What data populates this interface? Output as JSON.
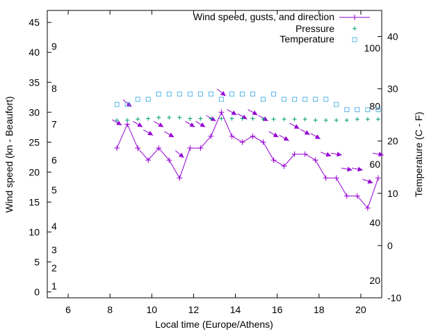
{
  "chart_data": {
    "type": "line",
    "title": "",
    "xlabel": "Local time (Europe/Athens)",
    "ylabel": "Wind speed (kn - Beaufort)",
    "y2label": "Temperature (C - F)",
    "xlim": [
      5,
      21
    ],
    "ylim": [
      -1,
      47
    ],
    "y2lim": [
      -10,
      45
    ],
    "x_ticks": [
      "6",
      "8",
      "10",
      "12",
      "14",
      "16",
      "18",
      "20"
    ],
    "y_ticks": [
      "0",
      "5",
      "10",
      "15",
      "20",
      "25",
      "30",
      "35",
      "40",
      "45"
    ],
    "y2_ticks": [
      "-10",
      "0",
      "10",
      "20",
      "30",
      "40"
    ],
    "beaufort_labels": [
      {
        "label": "1",
        "y": 1
      },
      {
        "label": "2",
        "y": 4
      },
      {
        "label": "3",
        "y": 7
      },
      {
        "label": "4",
        "y": 11
      },
      {
        "label": "5",
        "y": 17
      },
      {
        "label": "6",
        "y": 22
      },
      {
        "label": "7",
        "y": 28
      },
      {
        "label": "8",
        "y": 34
      },
      {
        "label": "9",
        "y": 41
      }
    ],
    "fahrenheit_labels": [
      {
        "label": "20",
        "c": -6.7
      },
      {
        "label": "40",
        "c": 4.4
      },
      {
        "label": "60",
        "c": 15.6
      },
      {
        "label": "80",
        "c": 26.7
      },
      {
        "label": "100",
        "c": 37.8
      }
    ],
    "legend": [
      {
        "name": "Wind speed, gusts, and direction",
        "color": "#9400d3"
      },
      {
        "name": "Pressure",
        "color": "#009e73"
      },
      {
        "name": "Temperature",
        "color": "#56b4e9"
      }
    ],
    "legend_position": "top-right",
    "series": [
      {
        "name": "Wind speed",
        "color": "#9400d3",
        "x": [
          8.33,
          8.83,
          9.33,
          9.83,
          10.33,
          10.83,
          11.33,
          11.83,
          12.33,
          12.83,
          13.33,
          13.83,
          14.33,
          14.83,
          15.33,
          15.83,
          16.33,
          16.83,
          17.33,
          17.83,
          18.33,
          18.83,
          19.33,
          19.83,
          20.33,
          20.83
        ],
        "values": [
          24,
          28,
          24,
          22,
          24,
          22,
          19,
          24,
          24,
          26,
          30,
          26,
          25,
          26,
          25,
          22,
          21,
          23,
          23,
          22,
          19,
          19,
          16,
          16,
          14,
          19
        ]
      },
      {
        "name": "Gusts/direction",
        "color": "#9400d3",
        "x": [
          8.33,
          8.83,
          9.33,
          9.83,
          10.33,
          10.83,
          11.33,
          11.83,
          12.33,
          12.83,
          13.33,
          13.83,
          14.33,
          14.83,
          15.33,
          15.83,
          16.33,
          16.83,
          17.33,
          17.83,
          18.33,
          18.83,
          19.33,
          19.83,
          20.33,
          20.83
        ],
        "values": [
          28.3,
          31.5,
          28.0,
          26.6,
          28.0,
          26.3,
          23.0,
          28.0,
          28.0,
          29.0,
          33.3,
          30.0,
          29.3,
          30.0,
          29.0,
          26.3,
          25.7,
          27.7,
          26.7,
          26.0,
          23.0,
          23.0,
          20.5,
          20.5,
          18.5,
          23.0
        ],
        "direction_deg": [
          300,
          310,
          300,
          300,
          300,
          300,
          310,
          300,
          300,
          300,
          310,
          300,
          300,
          300,
          300,
          300,
          300,
          300,
          300,
          300,
          290,
          280,
          280,
          280,
          290,
          280
        ]
      },
      {
        "name": "Pressure",
        "color": "#009e73",
        "x": [
          8.33,
          8.83,
          9.33,
          9.83,
          10.33,
          10.83,
          11.33,
          11.83,
          12.33,
          12.83,
          13.33,
          13.83,
          14.33,
          14.83,
          15.33,
          15.83,
          16.33,
          16.83,
          17.33,
          17.83,
          18.33,
          18.83,
          19.33,
          19.83,
          20.33,
          20.83
        ],
        "values": [
          24,
          24,
          24.2,
          24.3,
          24.5,
          24.5,
          24.5,
          24.3,
          24.3,
          24.3,
          24.3,
          24.3,
          24.3,
          24.3,
          24.2,
          24.2,
          24.2,
          24.2,
          24.2,
          24,
          24,
          24,
          24,
          24.2,
          24.2,
          24.2
        ]
      },
      {
        "name": "Temperature",
        "color": "#56b4e9",
        "x": [
          8.33,
          8.83,
          9.33,
          9.83,
          10.33,
          10.83,
          11.33,
          11.83,
          12.33,
          12.83,
          13.33,
          13.83,
          14.33,
          14.83,
          15.33,
          15.83,
          16.33,
          16.83,
          17.33,
          17.83,
          18.33,
          18.83,
          19.33,
          19.83,
          20.33,
          20.83
        ],
        "values": [
          27,
          27,
          28,
          28,
          29,
          29,
          29,
          29,
          29,
          29,
          28,
          29,
          29,
          29,
          28,
          29,
          28,
          28,
          28,
          28,
          28,
          27,
          26,
          26,
          26,
          26
        ]
      }
    ]
  }
}
